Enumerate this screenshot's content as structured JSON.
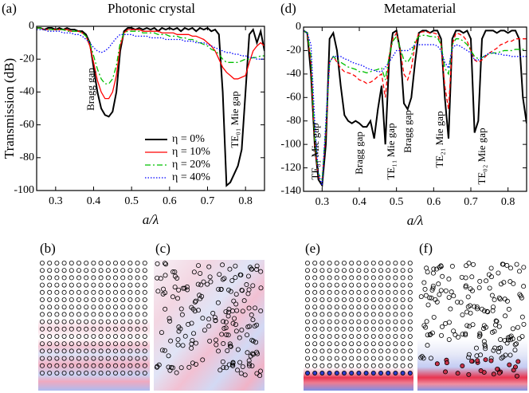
{
  "chart_data": [
    {
      "type": "line",
      "label": "(a)",
      "title": "Photonic crystal",
      "ylabel": "Transmission (dB)",
      "xlabel": "a/λ",
      "x": [
        0.25,
        0.26,
        0.27,
        0.28,
        0.29,
        0.3,
        0.31,
        0.32,
        0.33,
        0.34,
        0.35,
        0.36,
        0.37,
        0.38,
        0.39,
        0.4,
        0.41,
        0.42,
        0.43,
        0.44,
        0.45,
        0.46,
        0.47,
        0.48,
        0.49,
        0.5,
        0.51,
        0.52,
        0.53,
        0.54,
        0.55,
        0.56,
        0.57,
        0.58,
        0.59,
        0.6,
        0.61,
        0.62,
        0.63,
        0.64,
        0.65,
        0.66,
        0.67,
        0.68,
        0.69,
        0.7,
        0.71,
        0.72,
        0.73,
        0.74,
        0.75,
        0.76,
        0.77,
        0.78,
        0.79,
        0.8,
        0.81,
        0.82,
        0.83,
        0.84,
        0.85
      ],
      "series": [
        {
          "name": "η = 0%",
          "color": "#000000",
          "dash": "solid",
          "values": [
            -1,
            -1,
            -2,
            -1,
            -1,
            -2,
            -1,
            -2,
            -1,
            -2,
            -2,
            -3,
            -3,
            -5,
            -10,
            -25,
            -40,
            -50,
            -54,
            -55,
            -52,
            -40,
            -15,
            -3,
            -1,
            -1,
            -2,
            -1,
            -2,
            -1,
            -2,
            -1,
            -3,
            -1,
            -2,
            -1,
            -2,
            -1,
            -3,
            -1,
            -2,
            -1,
            -3,
            -1,
            -2,
            -1,
            -3,
            -2,
            -5,
            -40,
            -97,
            -95,
            -90,
            -85,
            -75,
            -40,
            -5,
            -2,
            -10,
            -3,
            -15
          ]
        },
        {
          "name": "η = 10%",
          "color": "#ff0000",
          "dash": "solid",
          "values": [
            -1,
            -1,
            -2,
            -2,
            -2,
            -2,
            -2,
            -2,
            -2,
            -3,
            -3,
            -3,
            -4,
            -6,
            -12,
            -22,
            -33,
            -40,
            -44,
            -44,
            -40,
            -30,
            -12,
            -4,
            -2,
            -2,
            -2,
            -2,
            -3,
            -3,
            -3,
            -3,
            -3,
            -4,
            -4,
            -4,
            -4,
            -5,
            -5,
            -5,
            -5,
            -6,
            -6,
            -7,
            -8,
            -10,
            -12,
            -15,
            -20,
            -25,
            -28,
            -30,
            -32,
            -32,
            -31,
            -30,
            -22,
            -15,
            -12,
            -10,
            -12
          ]
        },
        {
          "name": "η = 20%",
          "color": "#00c000",
          "dash": "dashdot",
          "values": [
            -1,
            -1,
            -2,
            -2,
            -2,
            -2,
            -2,
            -2,
            -3,
            -3,
            -3,
            -3,
            -4,
            -6,
            -10,
            -18,
            -26,
            -32,
            -35,
            -35,
            -32,
            -24,
            -10,
            -4,
            -3,
            -3,
            -3,
            -3,
            -4,
            -4,
            -4,
            -4,
            -5,
            -5,
            -5,
            -6,
            -6,
            -6,
            -7,
            -7,
            -8,
            -8,
            -9,
            -10,
            -11,
            -12,
            -14,
            -15,
            -17,
            -20,
            -22,
            -22,
            -22,
            -22,
            -21,
            -20,
            -20,
            -19,
            -19,
            -18,
            -18
          ]
        },
        {
          "name": "η = 40%",
          "color": "#0000ff",
          "dash": "dotted",
          "values": [
            -2,
            -2,
            -2,
            -3,
            -3,
            -3,
            -3,
            -4,
            -4,
            -4,
            -5,
            -5,
            -6,
            -8,
            -10,
            -13,
            -15,
            -16,
            -15,
            -13,
            -10,
            -7,
            -5,
            -5,
            -5,
            -5,
            -6,
            -6,
            -6,
            -6,
            -7,
            -7,
            -7,
            -7,
            -8,
            -8,
            -8,
            -8,
            -8,
            -9,
            -9,
            -9,
            -10,
            -10,
            -10,
            -11,
            -12,
            -13,
            -14,
            -15,
            -16,
            -16,
            -17,
            -17,
            -18,
            -18,
            -19,
            -19,
            -20,
            -20,
            -20
          ]
        }
      ],
      "xlim": [
        0.25,
        0.85
      ],
      "xticks": [
        0.3,
        0.4,
        0.5,
        0.6,
        0.7,
        0.8
      ],
      "ylim": [
        -100,
        0
      ],
      "yticks": [
        0,
        -20,
        -40,
        -60,
        -80,
        -100
      ],
      "legend": "lower right",
      "annotations": [
        "Bragg gap",
        "TE₀₁ Mie gap"
      ]
    },
    {
      "type": "line",
      "label": "(d)",
      "title": "Metamaterial",
      "xlabel": "a/λ",
      "x": [
        0.25,
        0.26,
        0.27,
        0.28,
        0.29,
        0.3,
        0.31,
        0.32,
        0.33,
        0.34,
        0.35,
        0.36,
        0.37,
        0.38,
        0.39,
        0.4,
        0.41,
        0.42,
        0.43,
        0.44,
        0.45,
        0.46,
        0.47,
        0.48,
        0.49,
        0.5,
        0.51,
        0.52,
        0.53,
        0.54,
        0.55,
        0.56,
        0.57,
        0.58,
        0.59,
        0.6,
        0.61,
        0.62,
        0.63,
        0.64,
        0.65,
        0.66,
        0.67,
        0.68,
        0.69,
        0.7,
        0.71,
        0.72,
        0.73,
        0.74,
        0.75,
        0.76,
        0.77,
        0.78,
        0.79,
        0.8,
        0.81,
        0.82,
        0.83,
        0.84,
        0.85
      ],
      "series": [
        {
          "name": "η = 0%",
          "color": "#000000",
          "dash": "solid",
          "values": [
            -3,
            -5,
            -40,
            -100,
            -130,
            -135,
            -100,
            -10,
            -5,
            -20,
            -50,
            -75,
            -80,
            -82,
            -80,
            -82,
            -85,
            -85,
            -80,
            -95,
            -70,
            -50,
            -100,
            -30,
            -5,
            -3,
            -20,
            -65,
            -70,
            -60,
            -30,
            -5,
            -3,
            -3,
            -5,
            -3,
            -3,
            -10,
            -60,
            -95,
            -10,
            -3,
            -3,
            -5,
            -3,
            -10,
            -90,
            -80,
            -10,
            -3,
            -3,
            -3,
            -5,
            -3,
            -3,
            -5,
            -3,
            -3,
            -10,
            -60,
            -82
          ]
        },
        {
          "name": "η = 10%",
          "color": "#ff0000",
          "dash": "dashed",
          "values": [
            -3,
            -5,
            -30,
            -100,
            -128,
            -130,
            -90,
            -30,
            -25,
            -30,
            -35,
            -38,
            -39,
            -40,
            -42,
            -45,
            -46,
            -48,
            -47,
            -45,
            -42,
            -40,
            -60,
            -25,
            -10,
            -5,
            -20,
            -40,
            -45,
            -35,
            -15,
            -5,
            -4,
            -4,
            -5,
            -5,
            -6,
            -15,
            -50,
            -70,
            -15,
            -5,
            -6,
            -8,
            -12,
            -20,
            -28,
            -30,
            -28,
            -25,
            -22,
            -20,
            -18,
            -15,
            -14,
            -12,
            -12,
            -10,
            -10,
            -10,
            -10
          ]
        },
        {
          "name": "η = 20%",
          "color": "#00c000",
          "dash": "dashdot",
          "values": [
            -3,
            -5,
            -25,
            -95,
            -125,
            -130,
            -85,
            -30,
            -25,
            -28,
            -30,
            -32,
            -34,
            -35,
            -36,
            -38,
            -38,
            -39,
            -38,
            -37,
            -36,
            -35,
            -45,
            -25,
            -12,
            -8,
            -18,
            -28,
            -30,
            -25,
            -12,
            -8,
            -7,
            -7,
            -8,
            -8,
            -9,
            -15,
            -35,
            -40,
            -15,
            -10,
            -10,
            -12,
            -15,
            -20,
            -25,
            -27,
            -26,
            -24,
            -23,
            -22,
            -22,
            -21,
            -20,
            -20,
            -20,
            -19,
            -19,
            -19,
            -19
          ]
        },
        {
          "name": "η = 40%",
          "color": "#0000ff",
          "dash": "dotted",
          "values": [
            -3,
            -5,
            -15,
            -80,
            -125,
            -135,
            -80,
            -30,
            -25,
            -25,
            -25,
            -27,
            -28,
            -30,
            -31,
            -32,
            -33,
            -35,
            -36,
            -37,
            -38,
            -38,
            -34,
            -30,
            -25,
            -20,
            -20,
            -20,
            -20,
            -18,
            -15,
            -15,
            -15,
            -15,
            -15,
            -15,
            -16,
            -20,
            -30,
            -35,
            -18,
            -15,
            -16,
            -18,
            -20,
            -22,
            -28,
            -28,
            -26,
            -24,
            -22,
            -22,
            -23,
            -23,
            -24,
            -24,
            -25,
            -25,
            -25,
            -25,
            -25
          ]
        }
      ],
      "xlim": [
        0.25,
        0.85
      ],
      "xticks": [
        0.3,
        0.4,
        0.5,
        0.6,
        0.7,
        0.8
      ],
      "ylim": [
        -140,
        0
      ],
      "yticks": [
        0,
        -20,
        -40,
        -60,
        -80,
        -100,
        -120,
        -140
      ],
      "annotations": [
        "TE₀₁ Mie gap",
        "Bragg gap",
        "TE₁₁ Mie gap",
        "Bragg gap",
        "TE₂₁ Mie gap",
        "TE₀₂ Mie gap"
      ]
    }
  ],
  "panels": [
    {
      "label": "(b)"
    },
    {
      "label": "(c)"
    },
    {
      "label": "(e)"
    },
    {
      "label": "(f)"
    }
  ]
}
